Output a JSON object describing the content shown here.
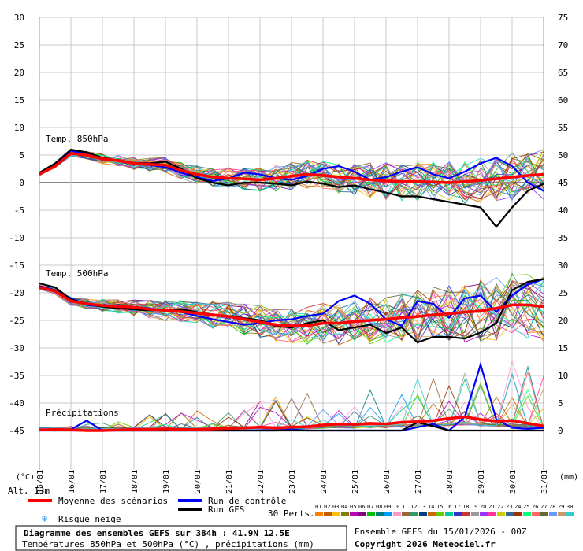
{
  "chart_data": {
    "type": "line",
    "title": "Diagramme des ensembles GEFS sur 384h : 41.9N 12.5E",
    "subtitle": "Températures 850hPa et 500hPa (°C) , précipitations (mm)",
    "altitude_label": "Alt. 13m",
    "left_unit": "(°C)",
    "right_unit": "(mm)",
    "x_tick_labels": [
      "15/01",
      "16/01",
      "17/01",
      "18/01",
      "19/01",
      "20/01",
      "21/01",
      "22/01",
      "23/01",
      "24/01",
      "25/01",
      "26/01",
      "27/01",
      "28/01",
      "29/01",
      "30/01",
      "31/01"
    ],
    "left_axis_ticks": [
      30,
      25,
      20,
      15,
      10,
      5,
      0,
      -5,
      -10,
      -15,
      -20,
      -25,
      -30,
      -35,
      -40,
      -45
    ],
    "right_axis_ticks": [
      75,
      70,
      65,
      60,
      55,
      50,
      45,
      40,
      35,
      30,
      25,
      20,
      15,
      10,
      5,
      0
    ],
    "ylim_left": [
      -45,
      30
    ],
    "ylim_right": [
      0,
      75
    ],
    "grid": true,
    "panels": {
      "t850": {
        "label": "Temp. 850hPa"
      },
      "t500": {
        "label": "Temp. 500hPa"
      },
      "precip": {
        "label": "Précipitations"
      }
    },
    "days": [
      0,
      0.5,
      1,
      1.5,
      2,
      2.5,
      3,
      3.5,
      4,
      4.5,
      5,
      5.5,
      6,
      6.5,
      7,
      7.5,
      8,
      8.5,
      9,
      9.5,
      10,
      10.5,
      11,
      11.5,
      12,
      12.5,
      13,
      13.5,
      14,
      14.5,
      15,
      15.5,
      16
    ],
    "series": [
      {
        "name": "Moyenne des scénarios",
        "color": "#ff0000",
        "t850": [
          1.5,
          3,
          5.3,
          5,
          4.3,
          4,
          3.5,
          3.3,
          3.2,
          2.2,
          1.5,
          1,
          0.8,
          0.7,
          0.5,
          0.8,
          1.2,
          1.5,
          1.3,
          1,
          0.8,
          0.5,
          0.3,
          0.2,
          0.2,
          0.1,
          0,
          0.2,
          0.4,
          0.7,
          1,
          1.3,
          1.5
        ],
        "t500": [
          -19,
          -19.7,
          -21.5,
          -22,
          -22.3,
          -22.5,
          -22.6,
          -23,
          -23.2,
          -23.4,
          -23.7,
          -24,
          -24.3,
          -24.8,
          -25.3,
          -25.8,
          -26,
          -26,
          -25.5,
          -25.5,
          -25.2,
          -25,
          -24.8,
          -24.5,
          -24.3,
          -24,
          -23.8,
          -23.5,
          -23.3,
          -22.8,
          -22.2,
          -22.2,
          -22.5
        ],
        "precip": [
          0.1,
          0.2,
          0.1,
          0,
          0,
          0.1,
          0.2,
          0.2,
          0.3,
          0.2,
          0.2,
          0.3,
          0.4,
          0.5,
          0.6,
          0.5,
          0.6,
          0.7,
          1,
          1.2,
          1.1,
          1.3,
          1.2,
          1.5,
          1.6,
          1.8,
          2.2,
          2.5,
          2,
          1.7,
          1.8,
          1.3,
          0.8
        ]
      },
      {
        "name": "Run de contrôle",
        "color": "#0000ff",
        "t850": [
          1.7,
          3.2,
          5.8,
          5.2,
          4.5,
          4,
          3.6,
          3.2,
          2.8,
          1.8,
          1,
          0.3,
          0.8,
          1.8,
          1.5,
          0.8,
          0.5,
          1.2,
          2.5,
          3,
          2,
          0.5,
          1,
          2,
          2.8,
          1.5,
          0.8,
          2,
          3.5,
          4.5,
          3,
          0,
          -1.5
        ],
        "t500": [
          -18.8,
          -19.5,
          -21,
          -22.2,
          -22.5,
          -22.2,
          -23,
          -23.2,
          -23,
          -23.5,
          -24.2,
          -24.8,
          -25.3,
          -25.8,
          -25.5,
          -25,
          -24.8,
          -24.2,
          -23.8,
          -21.5,
          -20.5,
          -22,
          -24.8,
          -26,
          -21.5,
          -22,
          -24.5,
          -21,
          -20.5,
          -23.5,
          -20.5,
          -18.5,
          -17.5
        ],
        "precip": [
          0,
          0,
          0.2,
          1.8,
          0,
          0,
          0,
          0,
          0,
          0,
          0,
          0,
          0,
          0,
          0,
          0,
          0.2,
          0,
          0,
          0,
          0,
          0,
          0,
          0,
          0.6,
          1.2,
          0,
          2.5,
          12,
          2,
          0.5,
          0.3,
          0.5
        ]
      },
      {
        "name": "Run GFS",
        "color": "#000000",
        "t850": [
          1.8,
          3.5,
          6,
          5.5,
          4.5,
          4,
          3.6,
          3.5,
          3.8,
          2.5,
          0.8,
          0,
          -0.5,
          0,
          0,
          -0.2,
          -0.5,
          0.2,
          -0.2,
          -0.8,
          -0.5,
          -1.2,
          -1.8,
          -2.5,
          -2.5,
          -3,
          -3.5,
          -4,
          -4.5,
          -8,
          -4.5,
          -1.5,
          -0.2
        ],
        "t500": [
          -18.3,
          -19,
          -21.2,
          -22,
          -22.5,
          -22.8,
          -23,
          -23.2,
          -23.1,
          -23,
          -23.5,
          -24,
          -24.2,
          -24.6,
          -25,
          -26,
          -26.3,
          -25.5,
          -25,
          -26.8,
          -26.3,
          -25.8,
          -27.3,
          -26.3,
          -29,
          -28,
          -28,
          -28.3,
          -27.2,
          -25.5,
          -19.5,
          -18,
          -17.5
        ],
        "precip": [
          0.1,
          0,
          0,
          0,
          0,
          0,
          0,
          0,
          0,
          0,
          0,
          0,
          0,
          0,
          0,
          0,
          0,
          0,
          0,
          0,
          0,
          0,
          0,
          0,
          1.5,
          0.8,
          0,
          0,
          0,
          0,
          0,
          0,
          0
        ]
      }
    ],
    "perturbation_count": 30,
    "perturbation_colors": [
      "#ff7f00",
      "#bf5f00",
      "#ffbf00",
      "#7f7f00",
      "#bf00bf",
      "#7f007f",
      "#00bf00",
      "#007f7f",
      "#0099ff",
      "#ff99cc",
      "#996633",
      "#339966",
      "#003f7f",
      "#cc6600",
      "#66cc00",
      "#00cc99",
      "#3333cc",
      "#cc3333",
      "#999999",
      "#9933ff",
      "#ff3399",
      "#cccc00",
      "#336699",
      "#993300",
      "#00ff7f",
      "#ff6666",
      "#666633",
      "#6699ff",
      "#cc9966",
      "#33cccc"
    ]
  },
  "legend": {
    "mean": "Moyenne des scénarios",
    "control": "Run de contrôle",
    "gfs": "Run GFS",
    "snow": "Risque neige",
    "perts": "30 Perts.",
    "numbers": [
      "01",
      "02",
      "03",
      "04",
      "05",
      "06",
      "07",
      "08",
      "09",
      "10",
      "11",
      "12",
      "13",
      "14",
      "15",
      "16",
      "17",
      "18",
      "19",
      "20",
      "21",
      "22",
      "23",
      "24",
      "25",
      "26",
      "27",
      "28",
      "29",
      "30"
    ],
    "snow_color": "#3399ff"
  },
  "footer": {
    "box_title": "Diagramme des ensembles GEFS sur 384h : 41.9N 12.5E",
    "box_subtitle": "Températures 850hPa et 500hPa (°C) , précipitations (mm)",
    "run_info": "Ensemble GEFS du 15/01/2026 - 00Z",
    "copyright": "Copyright 2026 Meteociel.fr"
  }
}
